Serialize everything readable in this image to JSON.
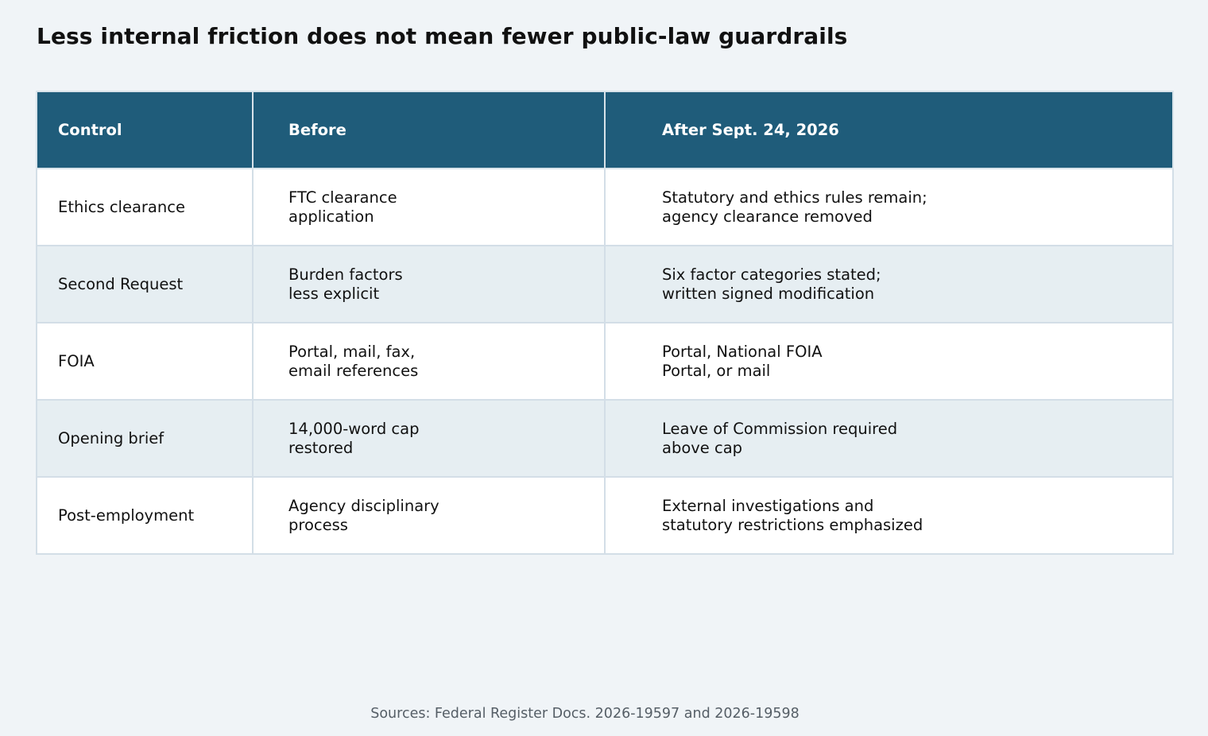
{
  "title": "Less internal friction does not mean fewer public-law guardrails",
  "chart_data": {
    "type": "table",
    "columns": [
      "Control",
      "Before",
      "After Sept. 24, 2026"
    ],
    "rows": [
      {
        "control": "Ethics clearance",
        "before": [
          "FTC clearance",
          "application"
        ],
        "after": [
          "Statutory and ethics rules remain;",
          "agency clearance removed"
        ]
      },
      {
        "control": "Second Request",
        "before": [
          "Burden factors",
          "less explicit"
        ],
        "after": [
          "Six factor categories stated;",
          "written signed modification"
        ]
      },
      {
        "control": "FOIA",
        "before": [
          "Portal, mail, fax,",
          "email references"
        ],
        "after": [
          "Portal, National FOIA",
          "Portal, or mail"
        ]
      },
      {
        "control": "Opening brief",
        "before": [
          "14,000-word cap",
          "restored"
        ],
        "after": [
          "Leave of Commission required",
          "above cap"
        ]
      },
      {
        "control": "Post-employment",
        "before": [
          "Agency disciplinary",
          "process"
        ],
        "after": [
          "External investigations and",
          "statutory restrictions emphasized"
        ]
      }
    ]
  },
  "source": "Sources: Federal Register Docs. 2026-19597 and 2026-19598",
  "colors": {
    "header_bg": "#1f5c7a",
    "header_text": "#ffffff",
    "row_odd": "#ffffff",
    "row_even": "#e6eef2",
    "border": "#d3dee7",
    "page_bg": "#f0f4f7"
  }
}
